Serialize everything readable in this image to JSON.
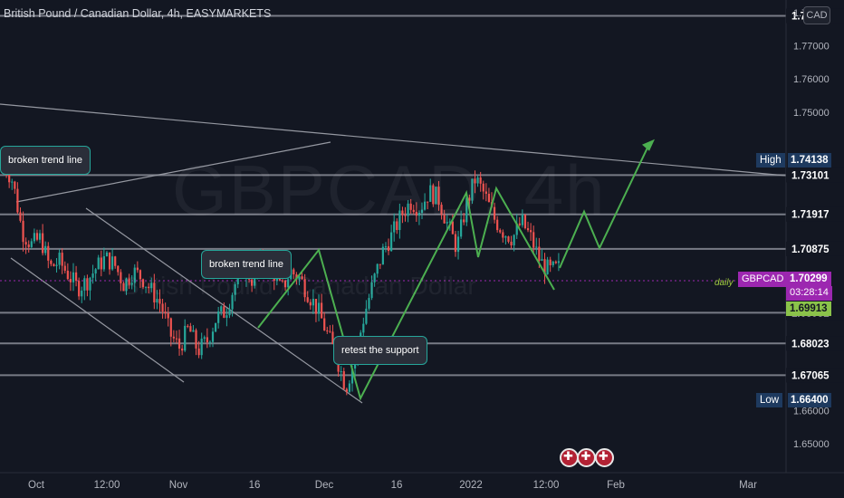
{
  "header": {
    "title": "British Pound / Canadian Dollar, 4h, EASYMARKETS",
    "currency_button": "CAD"
  },
  "watermark": {
    "symbol_tf": "GBPCAD, 4h",
    "description": "British Pound / Canadian Dollar"
  },
  "annotations": {
    "broken_trend_line_1": "broken trend line",
    "broken_trend_line_2": "broken trend line",
    "retest_support": "retest the support"
  },
  "price_scale": {
    "ticks": [
      "1.78000",
      "1.77000",
      "1.76000",
      "1.75000",
      "1.66000",
      "1.65000"
    ],
    "levels": [
      "1.77903",
      "1.73101",
      "1.71917",
      "1.70875",
      "1.68951",
      "1.68023",
      "1.67065"
    ],
    "high_label": "High",
    "high_value": "1.74138",
    "low_label": "Low",
    "low_value": "1.66400",
    "symbol": "GBPCAD",
    "last_price": "1.70299",
    "countdown": "03:28:14",
    "daily_label": "daily",
    "green_price": "1.69913"
  },
  "time_scale": {
    "labels": [
      "Oct",
      "12:00",
      "Nov",
      "16",
      "Dec",
      "16",
      "2022",
      "12:00",
      "Feb",
      "Mar"
    ]
  },
  "colors": {
    "background": "#131722",
    "candle_up": "#26a69a",
    "candle_down": "#ef5350",
    "projection": "#4caf50",
    "last_price": "#9c27b0",
    "level_line": "#787b86"
  },
  "chart_data": {
    "type": "candlestick",
    "ylim": [
      1.645,
      1.785
    ],
    "horizontal_levels": [
      1.77903,
      1.73101,
      1.71917,
      1.70875,
      1.68951,
      1.68023,
      1.67065
    ],
    "high": 1.74138,
    "low": 1.664,
    "last": 1.70299,
    "close_path": [
      1.735,
      1.729,
      1.714,
      1.71,
      1.712,
      1.703,
      1.705,
      1.701,
      1.697,
      1.699,
      1.703,
      1.706,
      1.704,
      1.698,
      1.702,
      1.7,
      1.696,
      1.692,
      1.683,
      1.679,
      1.685,
      1.678,
      1.681,
      1.688,
      1.69,
      1.698,
      1.703,
      1.699,
      1.706,
      1.703,
      1.696,
      1.702,
      1.7,
      1.695,
      1.69,
      1.683,
      1.676,
      1.667,
      1.676,
      1.689,
      1.699,
      1.708,
      1.713,
      1.719,
      1.723,
      1.721,
      1.726,
      1.724,
      1.716,
      1.709,
      1.722,
      1.73,
      1.725,
      1.718,
      1.714,
      1.712,
      1.717,
      1.712,
      1.705,
      1.702,
      1.703
    ],
    "projection_path": [
      1.703,
      1.72,
      1.709,
      1.741
    ]
  }
}
